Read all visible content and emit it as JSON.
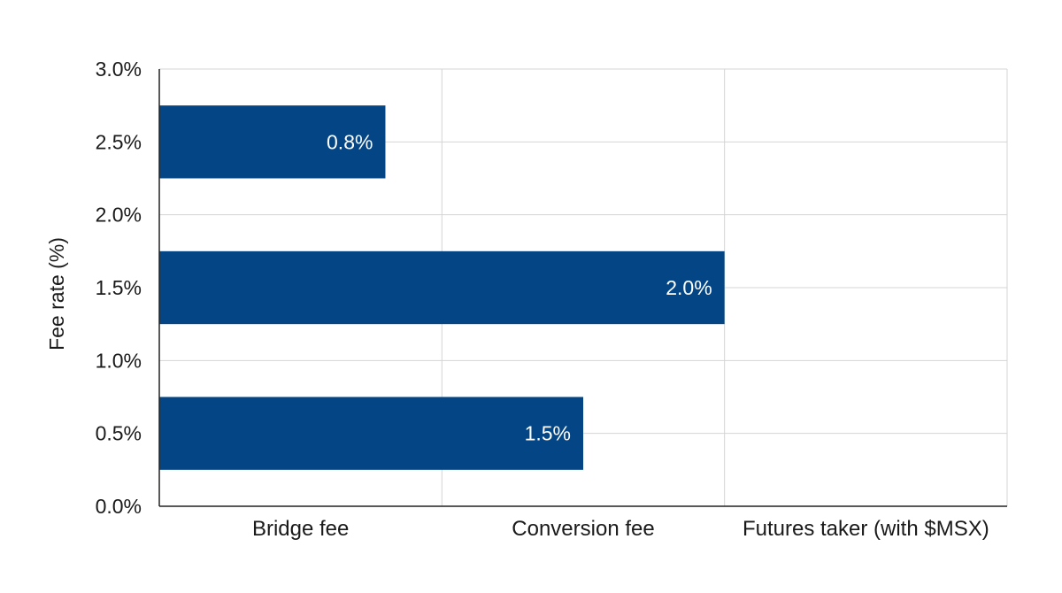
{
  "chart_data": {
    "type": "bar",
    "orientation": "horizontal-bars-on-vertical-axis",
    "title": "",
    "ylabel": "Fee rate (%)",
    "xlabel": "",
    "y_ticks": [
      "0.0%",
      "0.5%",
      "1.0%",
      "1.5%",
      "2.0%",
      "2.5%",
      "3.0%"
    ],
    "ylim": [
      0,
      3
    ],
    "categories": [
      "Bridge fee",
      "Conversion fee",
      "Futures taker (with $MSX)"
    ],
    "bars": [
      {
        "label": "0.8%",
        "value": 0.8,
        "y_center": 2.5
      },
      {
        "label": "2.0%",
        "value": 2.0,
        "y_center": 1.5
      },
      {
        "label": "1.5%",
        "value": 1.5,
        "y_center": 0.5
      }
    ],
    "grid": true,
    "colors": {
      "bar": "#044685",
      "grid": "#d4d4d4",
      "axis": "#222222"
    }
  }
}
